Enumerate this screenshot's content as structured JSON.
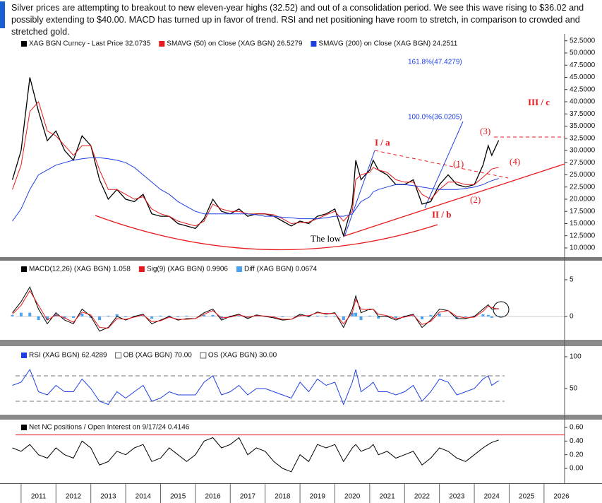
{
  "header": {
    "text": "Silver prices are attempting to breakout to new eleven-year highs (32.52) and out of a consolidation period. We see this wave rising to $36.02 and possibly extending to $40.00. MACD has turned up in favor of trend. RSI and net positioning have room to stretch, in comparison to crowded and stretched gold."
  },
  "chart_data": [
    {
      "type": "line",
      "x": [
        2010.75,
        2011,
        2011.25,
        2011.5,
        2011.75,
        2012,
        2012.25,
        2012.5,
        2012.75,
        2013,
        2013.25,
        2013.5,
        2013.75,
        2014,
        2014.25,
        2014.5,
        2014.75,
        2015,
        2015.25,
        2015.5,
        2015.75,
        2016,
        2016.25,
        2016.5,
        2016.75,
        2017,
        2017.25,
        2017.5,
        2017.75,
        2018,
        2018.25,
        2018.5,
        2018.75,
        2019,
        2019.25,
        2019.5,
        2019.75,
        2020,
        2020.25,
        2020.5,
        2020.6,
        2020.75,
        2021,
        2021.1,
        2021.25,
        2021.5,
        2021.75,
        2022,
        2022.25,
        2022.5,
        2022.75,
        2023,
        2023.25,
        2023.5,
        2023.75,
        2024,
        2024.25,
        2024.4,
        2024.5,
        2024.7
      ],
      "series": [
        {
          "name": "XAG BGN Curncy - Last Price 32.0735",
          "color": "#000000",
          "values": [
            24,
            30,
            45,
            38,
            32,
            34,
            30,
            28,
            33,
            31,
            24,
            20,
            22,
            20,
            19.5,
            21,
            17,
            16.5,
            16.5,
            15,
            14.5,
            14,
            16,
            20,
            17.5,
            17,
            18,
            16.5,
            17,
            17,
            16.5,
            15.5,
            14.5,
            15.5,
            15,
            16.5,
            17,
            18,
            12.5,
            19,
            28,
            24,
            26,
            28,
            26,
            25,
            23,
            23,
            24,
            19,
            19.5,
            23,
            25,
            23,
            22.5,
            23,
            27,
            31,
            29,
            32.0735
          ]
        },
        {
          "name": "SMAVG (50)  on Close (XAG BGN) 26.5279",
          "color": "#e8191c",
          "values": [
            22,
            27,
            38,
            40,
            34,
            33,
            31,
            29,
            31,
            31,
            26,
            22,
            22,
            21,
            20,
            20.5,
            18,
            17,
            16.5,
            15.5,
            15,
            14.5,
            15.5,
            19,
            18,
            17.5,
            17.5,
            17,
            17,
            17,
            16.8,
            16,
            15,
            15.2,
            15.3,
            16,
            16.8,
            17.5,
            15.5,
            17.5,
            24,
            25,
            25.5,
            26.5,
            26,
            25.5,
            24,
            23.5,
            23.5,
            21,
            20,
            22,
            23.5,
            23.5,
            23,
            23,
            24.5,
            25.5,
            26.2,
            26.5279
          ]
        },
        {
          "name": "SMAVG (200)  on Close (XAG BGN) 24.2511",
          "color": "#1f3fe0",
          "values": [
            15.5,
            18,
            22,
            25,
            26,
            27,
            27.5,
            28,
            28.3,
            28.5,
            28.5,
            28.3,
            28,
            27.5,
            26.5,
            25,
            23.5,
            22,
            21,
            19.5,
            18.5,
            17.5,
            17,
            17,
            17,
            17,
            17,
            17,
            16.8,
            16.5,
            16.5,
            16.3,
            16.2,
            16,
            16,
            16,
            16.2,
            16.5,
            16.5,
            17,
            18,
            19.5,
            20.5,
            21.5,
            22,
            22.5,
            23,
            23,
            22.8,
            22.5,
            22.2,
            22,
            22,
            22,
            22.2,
            22.5,
            23,
            23.5,
            23.8,
            24.2511
          ]
        }
      ],
      "annotations": [
        {
          "text": "161.8%(47.4279)",
          "color": "#1f3fe0"
        },
        {
          "text": "100.0%(36.0205)",
          "color": "#1f3fe0"
        },
        {
          "text": "III / c",
          "color": "#e8191c"
        },
        {
          "text": "(3)",
          "color": "#e8191c"
        },
        {
          "text": "I / a",
          "color": "#e8191c"
        },
        {
          "text": "(1)",
          "color": "#e8191c"
        },
        {
          "text": "(4)",
          "color": "#e8191c"
        },
        {
          "text": "(2)",
          "color": "#e8191c"
        },
        {
          "text": "II / b",
          "color": "#e8191c"
        },
        {
          "text": "The low",
          "color": "#000000"
        }
      ],
      "xlim": [
        2010.84,
        2026.59
      ],
      "ylim": [
        8.4,
        52.9
      ],
      "yticks": [
        {
          "value": 10,
          "label": "10.0000"
        },
        {
          "value": 12.5,
          "label": "12.5000"
        },
        {
          "value": 15,
          "label": "15.0000"
        },
        {
          "value": 17.5,
          "label": "17.5000"
        },
        {
          "value": 20,
          "label": "20.0000"
        },
        {
          "value": 22.5,
          "label": "22.5000"
        },
        {
          "value": 25,
          "label": "25.0000"
        },
        {
          "value": 27.5,
          "label": "27.5000"
        },
        {
          "value": 30,
          "label": "30.0000"
        },
        {
          "value": 32.5,
          "label": "32.5000"
        },
        {
          "value": 35,
          "label": "35.0000"
        },
        {
          "value": 37.5,
          "label": "37.5000"
        },
        {
          "value": 40,
          "label": "40.0000"
        },
        {
          "value": 42.5,
          "label": "42.5000"
        },
        {
          "value": 45,
          "label": "45.0000"
        },
        {
          "value": 47.5,
          "label": "47.5000"
        },
        {
          "value": 50,
          "label": "50.0000"
        },
        {
          "value": 52.5,
          "label": "52.5000"
        }
      ]
    },
    {
      "type": "line",
      "x": [
        2010.75,
        2011,
        2011.25,
        2011.5,
        2011.75,
        2012,
        2012.25,
        2012.5,
        2012.75,
        2013,
        2013.25,
        2013.5,
        2013.75,
        2014,
        2014.25,
        2014.5,
        2014.75,
        2015,
        2015.25,
        2015.5,
        2015.75,
        2016,
        2016.25,
        2016.5,
        2016.75,
        2017,
        2017.25,
        2017.5,
        2017.75,
        2018,
        2018.25,
        2018.5,
        2018.75,
        2019,
        2019.25,
        2019.5,
        2019.75,
        2020,
        2020.25,
        2020.5,
        2020.6,
        2020.75,
        2021,
        2021.1,
        2021.25,
        2021.5,
        2021.75,
        2022,
        2022.25,
        2022.5,
        2022.75,
        2023,
        2023.25,
        2023.5,
        2023.75,
        2024,
        2024.25,
        2024.4,
        2024.5,
        2024.7
      ],
      "series": [
        {
          "name": "Diff (XAG BGN) 0.0674",
          "color": "#4aa3f0",
          "type": "bar",
          "values": [
            0.2,
            0.5,
            0.5,
            -0.5,
            -0.5,
            0.3,
            -0.3,
            -0.2,
            0.4,
            -0.2,
            -0.5,
            0.1,
            0.3,
            -0.1,
            0.1,
            0.1,
            -0.3,
            0.1,
            0.1,
            -0.1,
            0.1,
            0,
            0.2,
            0.2,
            -0.3,
            0.1,
            0.1,
            -0.2,
            0.1,
            -0.05,
            -0.1,
            -0.1,
            0,
            0.2,
            -0.1,
            0.1,
            -0.1,
            0.1,
            -0.5,
            0.5,
            0.5,
            -0.5,
            0.1,
            0,
            -0.3,
            -0.1,
            -0.2,
            0.1,
            0.1,
            -0.4,
            0.2,
            0.4,
            0,
            -0.3,
            -0.1,
            0.1,
            0.3,
            0.2,
            -0.2,
            0.0674
          ]
        },
        {
          "name": "MACD(12,26) (XAG BGN) 1.058",
          "color": "#000000",
          "values": [
            0.5,
            2,
            4,
            1,
            -1,
            0.5,
            -0.5,
            -1,
            1,
            0,
            -2,
            -1.5,
            0,
            -0.5,
            0,
            0.3,
            -1,
            -0.5,
            0,
            -0.5,
            -0.3,
            -0.3,
            0.5,
            1,
            -0.5,
            0,
            0.3,
            -0.3,
            0.2,
            0,
            -0.2,
            -0.5,
            -0.4,
            0.3,
            0,
            0.6,
            0.3,
            0.5,
            -1.5,
            1,
            2.8,
            0.5,
            1,
            1,
            0,
            0,
            -0.5,
            0,
            0.3,
            -1.5,
            -0.5,
            1,
            0.8,
            -0.3,
            -0.3,
            0,
            1,
            1.6,
            1,
            1.058
          ]
        },
        {
          "name": "Sig(9) (XAG BGN) 0.9906",
          "color": "#e8191c",
          "values": [
            0.3,
            1.5,
            3.5,
            1.5,
            -0.5,
            0.2,
            -0.2,
            -0.8,
            0.6,
            0.2,
            -1.5,
            -1.6,
            -0.3,
            -0.4,
            -0.1,
            0.2,
            -0.7,
            -0.6,
            -0.1,
            -0.4,
            -0.4,
            -0.3,
            0.3,
            0.8,
            -0.2,
            -0.1,
            0.2,
            -0.1,
            0.1,
            0.05,
            -0.1,
            -0.4,
            -0.4,
            0.1,
            0.1,
            0.5,
            0.4,
            0.4,
            -1,
            0.5,
            2.3,
            1,
            0.9,
            1,
            0.3,
            0.1,
            -0.3,
            -0.1,
            0.2,
            -1.1,
            -0.7,
            0.6,
            0.8,
            0,
            -0.2,
            -0.1,
            0.7,
            1.4,
            1.2,
            0.9906
          ]
        }
      ],
      "legend_order": [
        1,
        2,
        0
      ],
      "xlim": [
        2010.84,
        2026.59
      ],
      "ylim": [
        -2.9,
        7.5
      ],
      "yticks": [
        0,
        5
      ]
    },
    {
      "type": "line",
      "x": [
        2010.75,
        2011,
        2011.25,
        2011.5,
        2011.75,
        2012,
        2012.25,
        2012.5,
        2012.75,
        2013,
        2013.25,
        2013.5,
        2013.75,
        2014,
        2014.25,
        2014.5,
        2014.75,
        2015,
        2015.25,
        2015.5,
        2015.75,
        2016,
        2016.25,
        2016.5,
        2016.75,
        2017,
        2017.25,
        2017.5,
        2017.75,
        2018,
        2018.25,
        2018.5,
        2018.75,
        2019,
        2019.25,
        2019.5,
        2019.75,
        2020,
        2020.25,
        2020.5,
        2020.6,
        2020.75,
        2021,
        2021.1,
        2021.25,
        2021.5,
        2021.75,
        2022,
        2022.25,
        2022.5,
        2022.75,
        2023,
        2023.25,
        2023.5,
        2023.75,
        2024,
        2024.25,
        2024.4,
        2024.5,
        2024.7
      ],
      "series": [
        {
          "name": "RSI (XAG BGN) 62.4289",
          "color": "#1f3fe0",
          "values": [
            55,
            60,
            80,
            45,
            40,
            55,
            45,
            45,
            65,
            50,
            30,
            25,
            45,
            35,
            45,
            55,
            30,
            35,
            45,
            40,
            40,
            40,
            60,
            70,
            40,
            45,
            55,
            40,
            50,
            50,
            45,
            40,
            35,
            60,
            45,
            65,
            55,
            60,
            25,
            60,
            80,
            45,
            55,
            60,
            45,
            45,
            40,
            45,
            55,
            30,
            45,
            65,
            60,
            40,
            45,
            50,
            65,
            70,
            55,
            62.4289
          ]
        }
      ],
      "reference_lines": [
        {
          "name": "OB (XAG BGN) 70.00",
          "value": 70,
          "color": "#777777"
        },
        {
          "name": "OS (XAG BGN) 30.00",
          "value": 30,
          "color": "#777777"
        }
      ],
      "xlim": [
        2010.84,
        2026.59
      ],
      "ylim": [
        11.1,
        113.3
      ],
      "yticks": [
        50,
        100
      ]
    },
    {
      "type": "line",
      "x": [
        2010.75,
        2011,
        2011.25,
        2011.5,
        2011.75,
        2012,
        2012.25,
        2012.5,
        2012.75,
        2013,
        2013.25,
        2013.5,
        2013.75,
        2014,
        2014.25,
        2014.5,
        2014.75,
        2015,
        2015.25,
        2015.5,
        2015.75,
        2016,
        2016.25,
        2016.5,
        2016.75,
        2017,
        2017.25,
        2017.5,
        2017.75,
        2018,
        2018.25,
        2018.5,
        2018.75,
        2019,
        2019.25,
        2019.5,
        2019.75,
        2020,
        2020.25,
        2020.5,
        2020.6,
        2020.75,
        2021,
        2021.1,
        2021.25,
        2021.5,
        2021.75,
        2022,
        2022.25,
        2022.5,
        2022.75,
        2023,
        2023.25,
        2023.5,
        2023.75,
        2024,
        2024.25,
        2024.4,
        2024.5,
        2024.7
      ],
      "series": [
        {
          "name": "Net NC positions / Open Interest on 9/17/24 0.4146",
          "color": "#000000",
          "values": [
            0.3,
            0.25,
            0.35,
            0.2,
            0.15,
            0.3,
            0.2,
            0.15,
            0.4,
            0.3,
            0.05,
            0.1,
            0.25,
            0.2,
            0.3,
            0.35,
            0.1,
            0.15,
            0.3,
            0.2,
            0.1,
            0.2,
            0.4,
            0.45,
            0.3,
            0.35,
            0.45,
            0.2,
            0.3,
            0.25,
            0.1,
            0,
            -0.05,
            0.2,
            0.1,
            0.35,
            0.3,
            0.35,
            0.1,
            0.3,
            0.35,
            0.25,
            0.3,
            0.35,
            0.2,
            0.25,
            0.15,
            0.2,
            0.25,
            0.05,
            0.15,
            0.3,
            0.25,
            0.15,
            0.1,
            0.2,
            0.3,
            0.35,
            0.38,
            0.4146
          ]
        }
      ],
      "reference_lines": [
        {
          "value": 0.49,
          "color": "#e8191c"
        }
      ],
      "xlim": [
        2010.84,
        2026.59
      ],
      "ylim": [
        -0.207,
        0.683
      ],
      "yticks": [
        {
          "value": 0,
          "label": "0.00"
        },
        {
          "value": 0.2,
          "label": "0.20"
        },
        {
          "value": 0.4,
          "label": "0.40"
        },
        {
          "value": 0.6,
          "label": "0.60"
        }
      ],
      "xticks": [
        2011,
        2012,
        2013,
        2014,
        2015,
        2016,
        2017,
        2018,
        2019,
        2020,
        2021,
        2022,
        2023,
        2024,
        2025,
        2026
      ]
    }
  ]
}
